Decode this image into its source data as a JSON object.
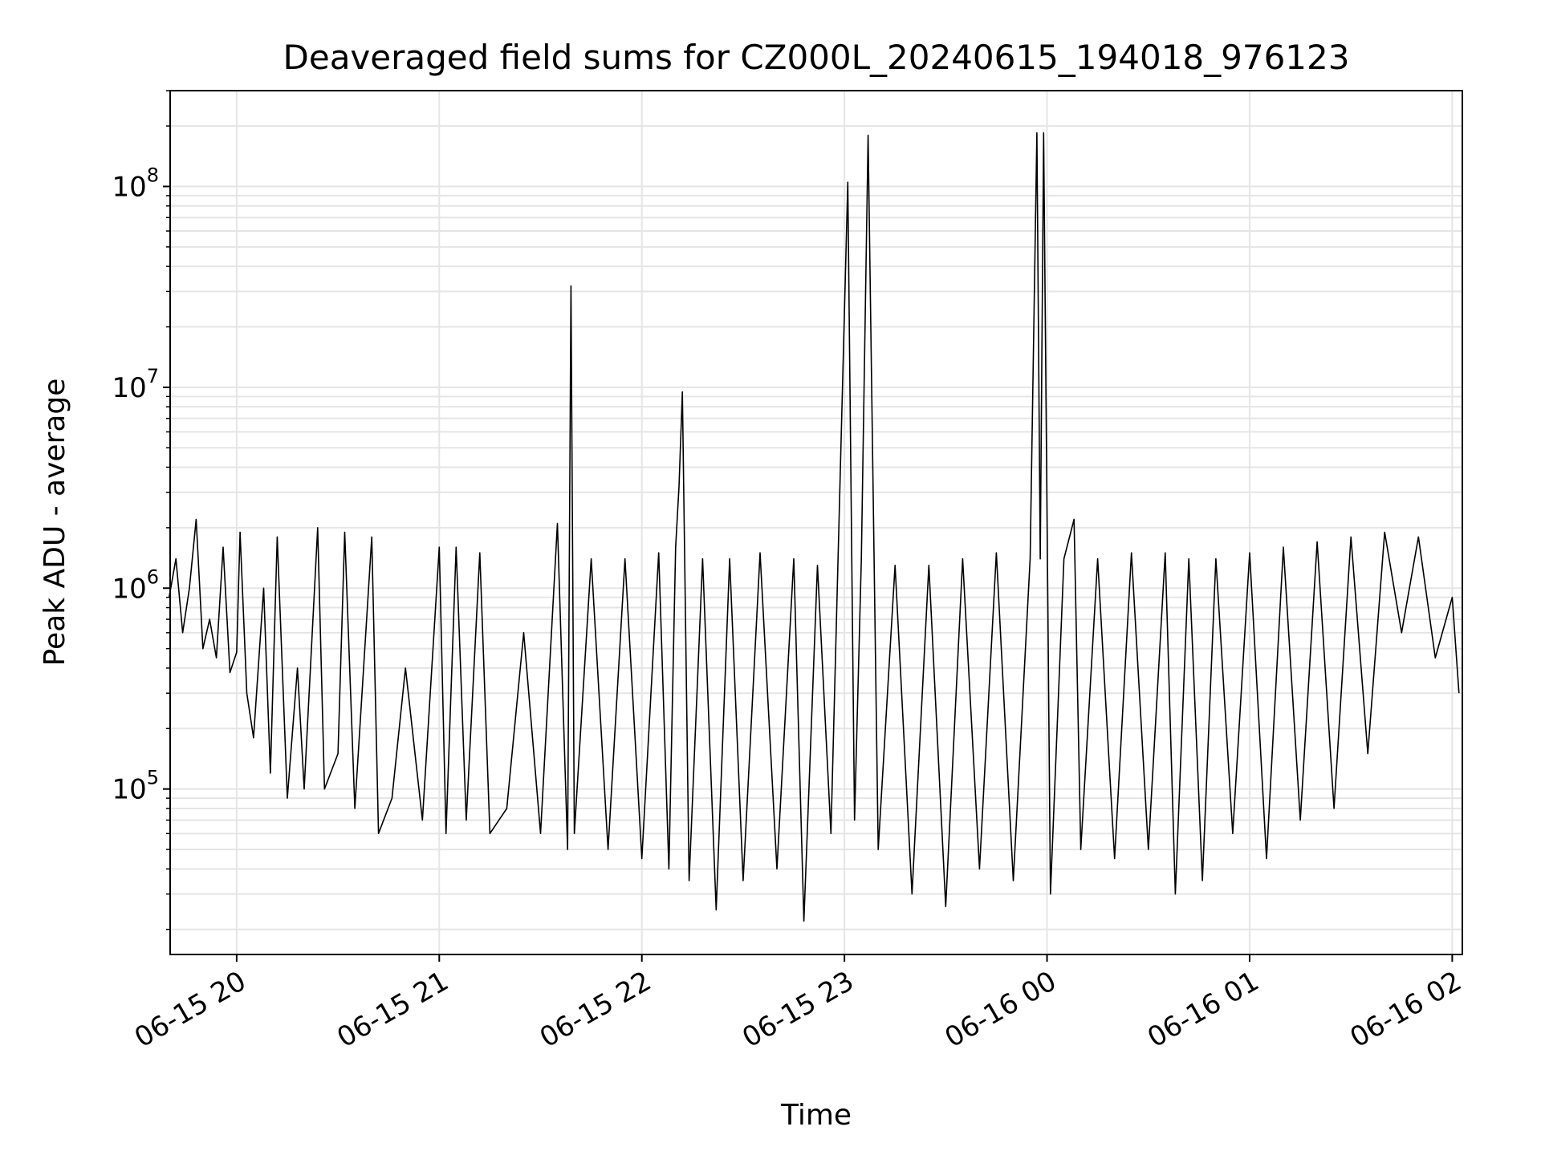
{
  "chart_data": {
    "type": "line",
    "title": "Deaveraged field sums for CZ000L_20240615_194018_976123",
    "xlabel": "Time",
    "ylabel": "Peak ADU - average",
    "yscale": "log",
    "ylim": [
      15000,
      300000000
    ],
    "xlim": [
      "2024-06-15 19:40:18",
      "2024-06-16 02:03:00"
    ],
    "grid": true,
    "line_color": "#000000",
    "x_ticks": [
      {
        "t": "2024-06-15 20:00",
        "label": "06-15 20"
      },
      {
        "t": "2024-06-15 21:00",
        "label": "06-15 21"
      },
      {
        "t": "2024-06-15 22:00",
        "label": "06-15 22"
      },
      {
        "t": "2024-06-15 23:00",
        "label": "06-15 23"
      },
      {
        "t": "2024-06-16 00:00",
        "label": "06-16 00"
      },
      {
        "t": "2024-06-16 01:00",
        "label": "06-16 01"
      },
      {
        "t": "2024-06-16 02:00",
        "label": "06-16 02"
      }
    ],
    "y_ticks": [
      {
        "value": 100000,
        "base": "10",
        "exp": "5"
      },
      {
        "value": 1000000,
        "base": "10",
        "exp": "6"
      },
      {
        "value": 10000000,
        "base": "10",
        "exp": "7"
      },
      {
        "value": 100000000,
        "base": "10",
        "exp": "8"
      }
    ],
    "series": [
      {
        "points": [
          [
            "2024-06-15 19:40",
            900000
          ],
          [
            "2024-06-15 19:42",
            1400000
          ],
          [
            "2024-06-15 19:44",
            600000
          ],
          [
            "2024-06-15 19:46",
            1000000
          ],
          [
            "2024-06-15 19:48",
            2200000
          ],
          [
            "2024-06-15 19:50",
            500000
          ],
          [
            "2024-06-15 19:52",
            700000
          ],
          [
            "2024-06-15 19:54",
            450000
          ],
          [
            "2024-06-15 19:56",
            1600000
          ],
          [
            "2024-06-15 19:58",
            380000
          ],
          [
            "2024-06-15 20:00",
            480000
          ],
          [
            "2024-06-15 20:01",
            1900000
          ],
          [
            "2024-06-15 20:03",
            300000
          ],
          [
            "2024-06-15 20:05",
            180000
          ],
          [
            "2024-06-15 20:08",
            1000000
          ],
          [
            "2024-06-15 20:10",
            120000
          ],
          [
            "2024-06-15 20:12",
            1800000
          ],
          [
            "2024-06-15 20:15",
            90000
          ],
          [
            "2024-06-15 20:18",
            400000
          ],
          [
            "2024-06-15 20:20",
            100000
          ],
          [
            "2024-06-15 20:24",
            2000000
          ],
          [
            "2024-06-15 20:26",
            100000
          ],
          [
            "2024-06-15 20:30",
            150000
          ],
          [
            "2024-06-15 20:32",
            1900000
          ],
          [
            "2024-06-15 20:35",
            80000
          ],
          [
            "2024-06-15 20:40",
            1800000
          ],
          [
            "2024-06-15 20:42",
            60000
          ],
          [
            "2024-06-15 20:46",
            90000
          ],
          [
            "2024-06-15 20:50",
            400000
          ],
          [
            "2024-06-15 20:55",
            70000
          ],
          [
            "2024-06-15 21:00",
            1600000
          ],
          [
            "2024-06-15 21:02",
            60000
          ],
          [
            "2024-06-15 21:05",
            1600000
          ],
          [
            "2024-06-15 21:08",
            70000
          ],
          [
            "2024-06-15 21:12",
            1500000
          ],
          [
            "2024-06-15 21:15",
            60000
          ],
          [
            "2024-06-15 21:20",
            80000
          ],
          [
            "2024-06-15 21:25",
            600000
          ],
          [
            "2024-06-15 21:30",
            60000
          ],
          [
            "2024-06-15 21:35",
            2100000
          ],
          [
            "2024-06-15 21:38",
            50000
          ],
          [
            "2024-06-15 21:39",
            32000000
          ],
          [
            "2024-06-15 21:40",
            60000
          ],
          [
            "2024-06-15 21:45",
            1400000
          ],
          [
            "2024-06-15 21:50",
            50000
          ],
          [
            "2024-06-15 21:55",
            1400000
          ],
          [
            "2024-06-15 22:00",
            45000
          ],
          [
            "2024-06-15 22:05",
            1500000
          ],
          [
            "2024-06-15 22:08",
            40000
          ],
          [
            "2024-06-15 22:10",
            1600000
          ],
          [
            "2024-06-15 22:11",
            3200000
          ],
          [
            "2024-06-15 22:12",
            9500000
          ],
          [
            "2024-06-15 22:14",
            35000
          ],
          [
            "2024-06-15 22:18",
            1400000
          ],
          [
            "2024-06-15 22:22",
            25000
          ],
          [
            "2024-06-15 22:26",
            1400000
          ],
          [
            "2024-06-15 22:30",
            35000
          ],
          [
            "2024-06-15 22:35",
            1500000
          ],
          [
            "2024-06-15 22:40",
            40000
          ],
          [
            "2024-06-15 22:45",
            1400000
          ],
          [
            "2024-06-15 22:48",
            22000
          ],
          [
            "2024-06-15 22:52",
            1300000
          ],
          [
            "2024-06-15 22:56",
            60000
          ],
          [
            "2024-06-15 23:01",
            105000000
          ],
          [
            "2024-06-15 23:03",
            70000
          ],
          [
            "2024-06-15 23:05",
            1400000
          ],
          [
            "2024-06-15 23:07",
            180000000
          ],
          [
            "2024-06-15 23:10",
            50000
          ],
          [
            "2024-06-15 23:15",
            1300000
          ],
          [
            "2024-06-15 23:20",
            30000
          ],
          [
            "2024-06-15 23:25",
            1300000
          ],
          [
            "2024-06-15 23:30",
            26000
          ],
          [
            "2024-06-15 23:35",
            1400000
          ],
          [
            "2024-06-15 23:40",
            40000
          ],
          [
            "2024-06-15 23:45",
            1500000
          ],
          [
            "2024-06-15 23:50",
            35000
          ],
          [
            "2024-06-15 23:55",
            1400000
          ],
          [
            "2024-06-15 23:57",
            185000000
          ],
          [
            "2024-06-15 23:58",
            1400000
          ],
          [
            "2024-06-15 23:59",
            185000000
          ],
          [
            "2024-06-16 00:01",
            30000
          ],
          [
            "2024-06-16 00:05",
            1400000
          ],
          [
            "2024-06-16 00:08",
            2200000
          ],
          [
            "2024-06-16 00:10",
            50000
          ],
          [
            "2024-06-16 00:15",
            1400000
          ],
          [
            "2024-06-16 00:20",
            45000
          ],
          [
            "2024-06-16 00:25",
            1500000
          ],
          [
            "2024-06-16 00:30",
            50000
          ],
          [
            "2024-06-16 00:35",
            1500000
          ],
          [
            "2024-06-16 00:38",
            30000
          ],
          [
            "2024-06-16 00:42",
            1400000
          ],
          [
            "2024-06-16 00:46",
            35000
          ],
          [
            "2024-06-16 00:50",
            1400000
          ],
          [
            "2024-06-16 00:55",
            60000
          ],
          [
            "2024-06-16 01:00",
            1500000
          ],
          [
            "2024-06-16 01:05",
            45000
          ],
          [
            "2024-06-16 01:10",
            1600000
          ],
          [
            "2024-06-16 01:15",
            70000
          ],
          [
            "2024-06-16 01:20",
            1700000
          ],
          [
            "2024-06-16 01:25",
            80000
          ],
          [
            "2024-06-16 01:30",
            1800000
          ],
          [
            "2024-06-16 01:35",
            150000
          ],
          [
            "2024-06-16 01:40",
            1900000
          ],
          [
            "2024-06-16 01:45",
            600000
          ],
          [
            "2024-06-16 01:50",
            1800000
          ],
          [
            "2024-06-16 01:55",
            450000
          ],
          [
            "2024-06-16 02:00",
            900000
          ],
          [
            "2024-06-16 02:02",
            300000
          ]
        ]
      }
    ]
  }
}
